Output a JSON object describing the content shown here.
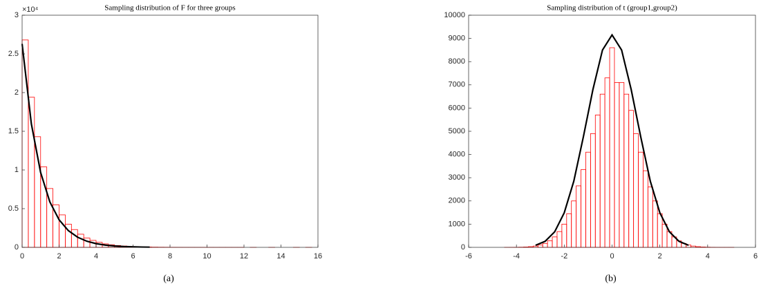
{
  "chart_data": [
    {
      "type": "histogram",
      "title": "Sampling distribution of F for three groups",
      "caption": "(a)",
      "y_multiplier": "×10⁴",
      "bar_color": "#ff0000",
      "curve_color": "#000000",
      "bins": [
        0,
        0.333,
        0.667,
        1,
        1.333,
        1.667,
        2,
        2.333,
        2.667,
        3,
        3.333,
        3.667,
        4,
        4.333,
        4.667,
        5,
        5.333,
        5.667,
        6,
        6.333,
        6.667,
        7,
        7.333,
        7.667,
        8,
        8.333,
        8.667,
        9,
        9.333,
        9.667,
        10,
        10.333,
        10.667,
        11,
        11.333,
        11.667,
        12,
        12.333,
        12.667,
        13,
        13.333,
        13.667,
        14,
        14.333,
        14.667,
        15,
        15.333,
        15.667
      ],
      "counts": [
        26800,
        19400,
        14300,
        10400,
        7600,
        5500,
        4200,
        3000,
        2300,
        1700,
        1200,
        900,
        650,
        450,
        330,
        240,
        170,
        120,
        90,
        60,
        45,
        30,
        20,
        15,
        10,
        8,
        5,
        4,
        3,
        2,
        2,
        1,
        1,
        1,
        1,
        1,
        0,
        1,
        0,
        0,
        1,
        0,
        0,
        0,
        1,
        0,
        1
      ],
      "curve": {
        "x": [
          0,
          0.5,
          1,
          1.5,
          2,
          2.5,
          3,
          3.5,
          4,
          4.5,
          5,
          5.5,
          6,
          6.5,
          6.9
        ],
        "y": [
          26300,
          15950,
          9680,
          5870,
          3560,
          2160,
          1310,
          795,
          480,
          290,
          177,
          107,
          65,
          40,
          26
        ]
      },
      "xlim": [
        0,
        16
      ],
      "xticks": [
        0,
        2,
        4,
        6,
        8,
        10,
        12,
        14,
        16
      ],
      "ylim": [
        0,
        30000
      ],
      "yticks": [
        0,
        {
          "value": 5000,
          "label": "0.5"
        },
        {
          "value": 10000,
          "label": "1"
        },
        {
          "value": 15000,
          "label": "1.5"
        },
        {
          "value": 20000,
          "label": "2"
        },
        {
          "value": 25000,
          "label": "2.5"
        },
        {
          "value": 30000,
          "label": "3"
        }
      ]
    },
    {
      "type": "histogram",
      "title": "Sampling distribution of t (group1,group2)",
      "caption": "(b)",
      "bar_color": "#ff0000",
      "curve_color": "#000000",
      "bins": [
        -4.5,
        -4.3,
        -4.1,
        -3.9,
        -3.7,
        -3.5,
        -3.3,
        -3.1,
        -2.9,
        -2.7,
        -2.5,
        -2.3,
        -2.1,
        -1.9,
        -1.7,
        -1.5,
        -1.3,
        -1.1,
        -0.9,
        -0.7,
        -0.5,
        -0.3,
        -0.1,
        0.1,
        0.3,
        0.5,
        0.7,
        0.9,
        1.1,
        1.3,
        1.5,
        1.7,
        1.9,
        2.1,
        2.3,
        2.5,
        2.7,
        2.9,
        3.1,
        3.3,
        3.5,
        3.7,
        3.9,
        4.1,
        4.3,
        4.5,
        4.7,
        4.9,
        5.1
      ],
      "counts": [
        1,
        2,
        4,
        8,
        15,
        30,
        55,
        100,
        170,
        280,
        450,
        680,
        1000,
        1450,
        2000,
        2650,
        3350,
        4100,
        4900,
        5700,
        6600,
        7300,
        8600,
        7100,
        7100,
        6600,
        5900,
        4900,
        4100,
        3300,
        2600,
        2000,
        1450,
        1000,
        680,
        450,
        280,
        170,
        100,
        55,
        30,
        15,
        8,
        4,
        2,
        1,
        1,
        1
      ],
      "curve": {
        "x": [
          -3.2,
          -2.8,
          -2.4,
          -2,
          -1.6,
          -1.2,
          -0.8,
          -0.4,
          0,
          0.4,
          0.8,
          1.2,
          1.6,
          2,
          2.4,
          2.8,
          3.2
        ],
        "y": [
          88,
          260,
          670,
          1490,
          2850,
          4760,
          6800,
          8500,
          9150,
          8500,
          6800,
          4760,
          2850,
          1490,
          670,
          260,
          88
        ]
      },
      "xlim": [
        -6,
        6
      ],
      "xticks": [
        -6,
        -4,
        -2,
        0,
        2,
        4,
        6
      ],
      "ylim": [
        0,
        10000
      ],
      "yticks": [
        0,
        1000,
        2000,
        3000,
        4000,
        5000,
        6000,
        7000,
        8000,
        9000,
        10000
      ]
    }
  ]
}
